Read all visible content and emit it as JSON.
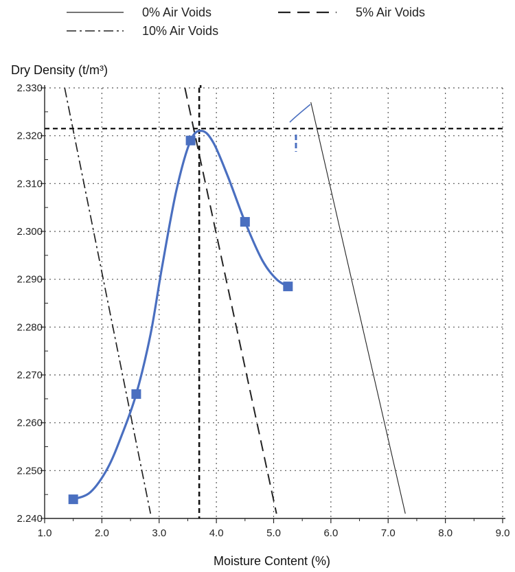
{
  "chart_data": {
    "type": "line",
    "title": "",
    "xlabel": "Moisture Content (%)",
    "ylabel": "Dry Density (t/m³)",
    "xlim": [
      1.0,
      9.0
    ],
    "ylim": [
      2.24,
      2.33
    ],
    "x_ticks": [
      "1.0",
      "2.0",
      "3.0",
      "4.0",
      "5.0",
      "6.0",
      "7.0",
      "8.0",
      "9.0"
    ],
    "y_ticks": [
      "2.240",
      "2.250",
      "2.260",
      "2.270",
      "2.280",
      "2.290",
      "2.300",
      "2.310",
      "2.320",
      "2.330"
    ],
    "grid": true,
    "legend": [
      {
        "label": "0% Air Voids",
        "dash": "solid"
      },
      {
        "label": "5% Air Voids",
        "dash": "dashed"
      },
      {
        "label": "10% Air Voids",
        "dash": "dash-dot"
      }
    ],
    "colors": {
      "compaction_curve": "#4a6fc0",
      "air_void_lines": "#222222",
      "optimum_lines": "#111111"
    },
    "series": [
      {
        "kind": "measured-points",
        "points": [
          [
            1.5,
            2.244
          ],
          [
            2.6,
            2.266
          ],
          [
            3.55,
            2.319
          ],
          [
            4.5,
            2.302
          ],
          [
            5.25,
            2.2885
          ]
        ]
      },
      {
        "kind": "compaction-curve",
        "points": [
          [
            1.5,
            2.244
          ],
          [
            1.8,
            2.2455
          ],
          [
            2.1,
            2.2505
          ],
          [
            2.35,
            2.2575
          ],
          [
            2.6,
            2.266
          ],
          [
            2.85,
            2.2785
          ],
          [
            3.05,
            2.2925
          ],
          [
            3.3,
            2.3085
          ],
          [
            3.55,
            2.319
          ],
          [
            3.75,
            2.321
          ],
          [
            3.95,
            2.3185
          ],
          [
            4.2,
            2.3115
          ],
          [
            4.5,
            2.302
          ],
          [
            4.8,
            2.294
          ],
          [
            5.05,
            2.29
          ],
          [
            5.25,
            2.2885
          ]
        ]
      },
      {
        "label": "0% Air Voids",
        "points": [
          [
            5.65,
            2.327
          ],
          [
            7.3,
            2.241
          ]
        ]
      },
      {
        "label": "5% Air Voids",
        "points": [
          [
            3.45,
            2.33
          ],
          [
            5.05,
            2.241
          ]
        ]
      },
      {
        "label": "10% Air Voids",
        "points": [
          [
            1.35,
            2.33
          ],
          [
            2.85,
            2.241
          ]
        ]
      }
    ],
    "annotations": {
      "max_dry_density": 2.3215,
      "optimum_moisture": 3.7
    }
  }
}
